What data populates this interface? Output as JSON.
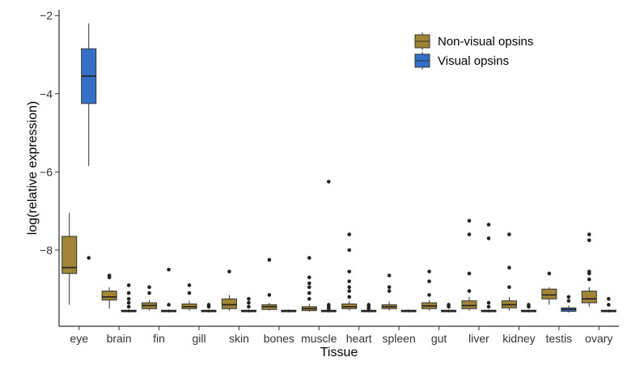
{
  "chart_data": {
    "type": "boxplot",
    "title": "",
    "xlabel": "Tissue",
    "ylabel": "log(relative expression)",
    "ylim": [
      -9.95,
      -1.85
    ],
    "yticks": [
      -2,
      -4,
      -6,
      -8
    ],
    "categories": [
      "eye",
      "brain",
      "fin",
      "gill",
      "skin",
      "bones",
      "muscle",
      "heart",
      "spleen",
      "gut",
      "liver",
      "kidney",
      "testis",
      "ovary"
    ],
    "legend": {
      "position": "top-right",
      "entries": [
        "Non-visual opsins",
        "Visual opsins"
      ]
    },
    "series": [
      {
        "name": "Non-visual opsins",
        "color": "#a08536",
        "boxes": [
          {
            "min": -9.4,
            "q1": -8.6,
            "median": -8.45,
            "q3": -7.65,
            "max": -7.05,
            "outliers": []
          },
          {
            "min": -9.5,
            "q1": -9.28,
            "median": -9.2,
            "q3": -9.05,
            "max": -8.95,
            "outliers": [
              -8.65,
              -8.7
            ]
          },
          {
            "min": -9.55,
            "q1": -9.5,
            "median": -9.42,
            "q3": -9.35,
            "max": -9.28,
            "outliers": [
              -9.1,
              -8.95
            ]
          },
          {
            "min": -9.55,
            "q1": -9.5,
            "median": -9.45,
            "q3": -9.38,
            "max": -9.3,
            "outliers": [
              -9.1,
              -8.9
            ]
          },
          {
            "min": -9.55,
            "q1": -9.5,
            "median": -9.4,
            "q3": -9.25,
            "max": -9.15,
            "outliers": [
              -8.55
            ]
          },
          {
            "min": -9.55,
            "q1": -9.52,
            "median": -9.45,
            "q3": -9.4,
            "max": -9.35,
            "outliers": [
              -9.15,
              -8.25
            ]
          },
          {
            "min": -9.58,
            "q1": -9.55,
            "median": -9.5,
            "q3": -9.45,
            "max": -9.38,
            "outliers": [
              -9.25,
              -9.1,
              -8.95,
              -8.85,
              -8.7,
              -8.2
            ]
          },
          {
            "min": -9.55,
            "q1": -9.5,
            "median": -9.45,
            "q3": -9.38,
            "max": -9.3,
            "outliers": [
              -9.2,
              -9.05,
              -8.95,
              -8.8,
              -8.55,
              -8.0,
              -7.6
            ]
          },
          {
            "min": -9.55,
            "q1": -9.5,
            "median": -9.45,
            "q3": -9.4,
            "max": -9.32,
            "outliers": [
              -9.05,
              -8.95,
              -8.65
            ]
          },
          {
            "min": -9.55,
            "q1": -9.5,
            "median": -9.43,
            "q3": -9.35,
            "max": -9.28,
            "outliers": [
              -9.15,
              -8.8,
              -8.55
            ]
          },
          {
            "min": -9.55,
            "q1": -9.5,
            "median": -9.42,
            "q3": -9.3,
            "max": -9.2,
            "outliers": [
              -9.05,
              -8.6,
              -7.6,
              -7.25
            ]
          },
          {
            "min": -9.55,
            "q1": -9.48,
            "median": -9.4,
            "q3": -9.3,
            "max": -9.2,
            "outliers": [
              -8.95,
              -8.45,
              -7.6
            ]
          },
          {
            "min": -9.4,
            "q1": -9.25,
            "median": -9.15,
            "q3": -9.0,
            "max": -8.95,
            "outliers": [
              -8.6
            ]
          },
          {
            "min": -9.45,
            "q1": -9.35,
            "median": -9.25,
            "q3": -9.05,
            "max": -8.95,
            "outliers": [
              -8.75,
              -8.6,
              -8.55,
              -7.75,
              -7.6
            ]
          }
        ]
      },
      {
        "name": "Visual opsins",
        "color": "#3470c9",
        "boxes": [
          {
            "min": -5.85,
            "q1": -4.25,
            "median": -3.55,
            "q3": -2.85,
            "max": -2.2,
            "outliers": [
              -8.2
            ]
          },
          {
            "min": -9.6,
            "q1": -9.58,
            "median": -9.56,
            "q3": -9.54,
            "max": -9.52,
            "outliers": [
              -9.45,
              -9.35,
              -9.25,
              -9.1,
              -8.9
            ]
          },
          {
            "min": -9.6,
            "q1": -9.58,
            "median": -9.56,
            "q3": -9.54,
            "max": -9.52,
            "outliers": [
              -9.4,
              -8.5
            ]
          },
          {
            "min": -9.6,
            "q1": -9.58,
            "median": -9.56,
            "q3": -9.54,
            "max": -9.52,
            "outliers": [
              -9.45,
              -9.4
            ]
          },
          {
            "min": -9.6,
            "q1": -9.58,
            "median": -9.56,
            "q3": -9.54,
            "max": -9.52,
            "outliers": [
              -9.45,
              -9.35,
              -9.25
            ]
          },
          {
            "min": -9.6,
            "q1": -9.58,
            "median": -9.56,
            "q3": -9.54,
            "max": -9.52,
            "outliers": []
          },
          {
            "min": -9.6,
            "q1": -9.58,
            "median": -9.56,
            "q3": -9.54,
            "max": -9.52,
            "outliers": [
              -9.5,
              -9.45,
              -9.4,
              -6.25
            ]
          },
          {
            "min": -9.6,
            "q1": -9.58,
            "median": -9.56,
            "q3": -9.54,
            "max": -9.52,
            "outliers": [
              -9.5,
              -9.45,
              -9.4
            ]
          },
          {
            "min": -9.6,
            "q1": -9.58,
            "median": -9.56,
            "q3": -9.54,
            "max": -9.52,
            "outliers": []
          },
          {
            "min": -9.6,
            "q1": -9.58,
            "median": -9.56,
            "q3": -9.54,
            "max": -9.52,
            "outliers": [
              -9.45,
              -9.4
            ]
          },
          {
            "min": -9.6,
            "q1": -9.58,
            "median": -9.56,
            "q3": -9.54,
            "max": -9.52,
            "outliers": [
              -9.45,
              -9.35,
              -7.7,
              -7.35
            ]
          },
          {
            "min": -9.6,
            "q1": -9.58,
            "median": -9.56,
            "q3": -9.54,
            "max": -9.52,
            "outliers": [
              -9.45,
              -9.4
            ]
          },
          {
            "min": -9.6,
            "q1": -9.57,
            "median": -9.52,
            "q3": -9.48,
            "max": -9.42,
            "outliers": [
              -9.3,
              -9.2
            ]
          },
          {
            "min": -9.6,
            "q1": -9.58,
            "median": -9.56,
            "q3": -9.54,
            "max": -9.52,
            "outliers": [
              -9.4,
              -9.25
            ]
          }
        ]
      }
    ]
  }
}
